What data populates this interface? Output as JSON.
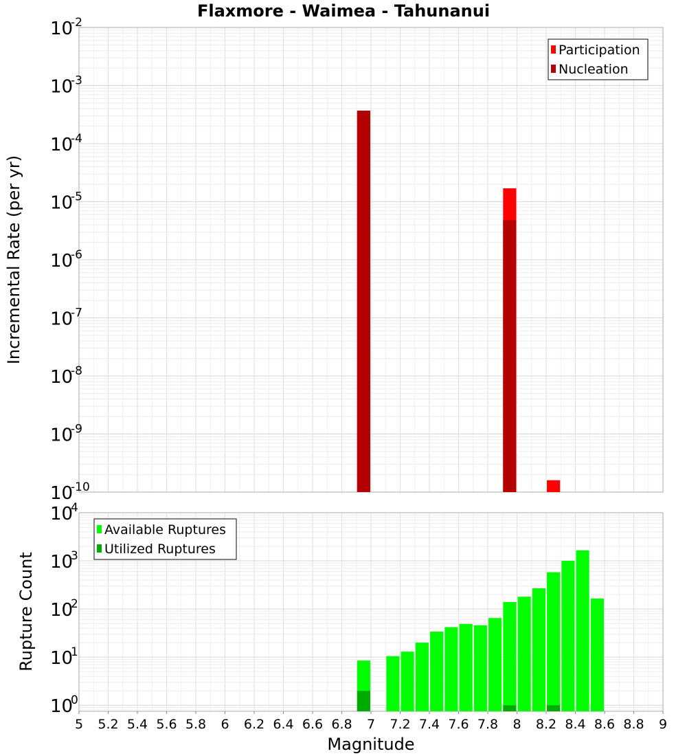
{
  "chart_data": [
    {
      "type": "bar",
      "title": "Flaxmore - Waimea - Tahunanui",
      "xlabel": "",
      "ylabel": "Incremental Rate (per yr)",
      "xlim": [
        5,
        9
      ],
      "yscale": "log",
      "ylim": [
        1e-10,
        0.01
      ],
      "ytick_exponents": [
        "-2",
        "-3",
        "-4",
        "-5",
        "-6",
        "-7",
        "-8",
        "-9",
        "-10"
      ],
      "ytick_base": "10",
      "legend": {
        "position": "top-right",
        "entries": [
          "Participation",
          "Nucleation"
        ]
      },
      "bar_width": 0.09,
      "series": [
        {
          "name": "Participation",
          "color": "#ff0000",
          "points": [
            {
              "x": 6.95,
              "y": 0.00037
            },
            {
              "x": 7.95,
              "y": 1.7e-05
            },
            {
              "x": 8.25,
              "y": 1.6e-10
            }
          ]
        },
        {
          "name": "Nucleation",
          "color": "#b30000",
          "points": [
            {
              "x": 6.95,
              "y": 0.00037
            },
            {
              "x": 7.95,
              "y": 4.8e-06
            }
          ]
        }
      ]
    },
    {
      "type": "bar",
      "title": "",
      "xlabel": "Magnitude",
      "ylabel": "Rupture Count",
      "xlim": [
        5,
        9
      ],
      "yscale": "log",
      "ylim": [
        0.75,
        10000
      ],
      "ytick_exponents": [
        "4",
        "3",
        "2",
        "1",
        "0"
      ],
      "ytick_base": "10",
      "xticks": [
        "5",
        "5.2",
        "5.4",
        "5.6",
        "5.8",
        "6",
        "6.2",
        "6.4",
        "6.6",
        "6.8",
        "7",
        "7.2",
        "7.4",
        "7.6",
        "7.8",
        "8",
        "8.2",
        "8.4",
        "8.6",
        "8.8",
        "9"
      ],
      "legend": {
        "position": "top-left",
        "entries": [
          "Available Ruptures",
          "Utilized Ruptures"
        ]
      },
      "bar_width": 0.09,
      "series": [
        {
          "name": "Available Ruptures",
          "color": "#00ff00",
          "points": [
            {
              "x": 6.95,
              "y": 8.5
            },
            {
              "x": 7.15,
              "y": 10.5
            },
            {
              "x": 7.25,
              "y": 13
            },
            {
              "x": 7.35,
              "y": 20
            },
            {
              "x": 7.45,
              "y": 34
            },
            {
              "x": 7.55,
              "y": 42
            },
            {
              "x": 7.65,
              "y": 49
            },
            {
              "x": 7.75,
              "y": 46
            },
            {
              "x": 7.85,
              "y": 65
            },
            {
              "x": 7.95,
              "y": 140
            },
            {
              "x": 8.05,
              "y": 180
            },
            {
              "x": 8.15,
              "y": 270
            },
            {
              "x": 8.25,
              "y": 580
            },
            {
              "x": 8.35,
              "y": 1000
            },
            {
              "x": 8.45,
              "y": 1650
            },
            {
              "x": 8.55,
              "y": 165
            }
          ]
        },
        {
          "name": "Utilized Ruptures",
          "color": "#00aa00",
          "points": [
            {
              "x": 6.95,
              "y": 2
            },
            {
              "x": 7.95,
              "y": 1
            },
            {
              "x": 8.25,
              "y": 1
            }
          ]
        }
      ]
    }
  ]
}
